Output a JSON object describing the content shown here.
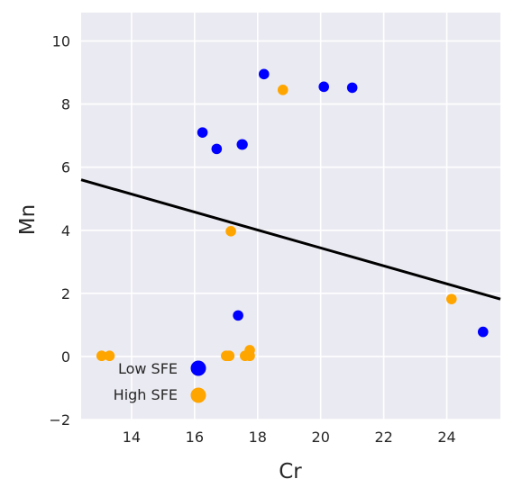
{
  "chart_data": {
    "type": "scatter",
    "xlabel": "Cr",
    "ylabel": "Mn",
    "xlim": [
      12.4,
      25.7
    ],
    "ylim": [
      -2,
      10.9
    ],
    "x_ticks": [
      14,
      16,
      18,
      20,
      22,
      24
    ],
    "y_ticks": [
      -2,
      0,
      2,
      4,
      6,
      8,
      10
    ],
    "grid": true,
    "legend_position": "lower-left",
    "series": [
      {
        "name": "Low SFE",
        "color": "#0000ff",
        "points": [
          {
            "x": 16.25,
            "y": 7.1
          },
          {
            "x": 16.7,
            "y": 6.58
          },
          {
            "x": 17.5,
            "y": 6.72
          },
          {
            "x": 17.52,
            "y": 6.72
          },
          {
            "x": 18.2,
            "y": 8.95
          },
          {
            "x": 20.1,
            "y": 8.55
          },
          {
            "x": 21.0,
            "y": 8.52
          },
          {
            "x": 17.38,
            "y": 1.3
          },
          {
            "x": 25.15,
            "y": 0.78
          }
        ]
      },
      {
        "name": "High SFE",
        "color": "#ffa500",
        "points": [
          {
            "x": 13.05,
            "y": 0.02
          },
          {
            "x": 13.3,
            "y": 0.02
          },
          {
            "x": 17.0,
            "y": 0.02
          },
          {
            "x": 17.1,
            "y": 0.02
          },
          {
            "x": 17.6,
            "y": 0.02
          },
          {
            "x": 17.75,
            "y": 0.02
          },
          {
            "x": 17.75,
            "y": 0.2
          },
          {
            "x": 17.15,
            "y": 3.97
          },
          {
            "x": 18.8,
            "y": 8.45
          },
          {
            "x": 24.15,
            "y": 1.82
          }
        ]
      }
    ],
    "fit_line": {
      "color": "#000000",
      "x": [
        12.4,
        25.7
      ],
      "y": [
        5.6,
        1.82
      ]
    }
  }
}
